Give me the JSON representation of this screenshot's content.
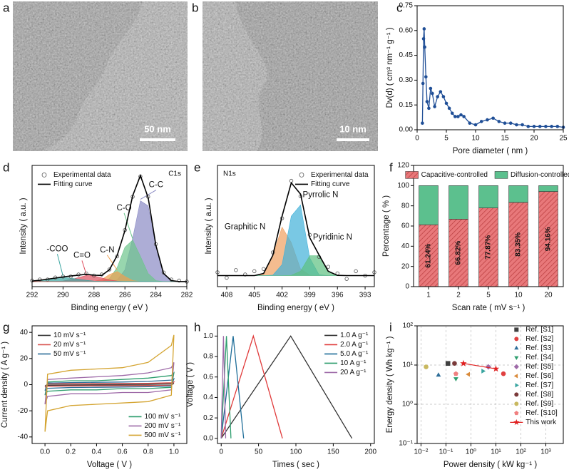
{
  "images": [
    {
      "panel": "a",
      "scale_bar": "50 nm"
    },
    {
      "panel": "b",
      "scale_bar": "10 nm"
    }
  ],
  "chart_data": [
    {
      "panel": "c",
      "type": "line",
      "markers": true,
      "color": "#1f4e96",
      "xlabel": "Pore diameter ( nm )",
      "ylabel": "Dv(d) ( cm³ nm⁻¹ g⁻¹ )",
      "xlim": [
        0,
        25
      ],
      "xticks": [
        0,
        5,
        10,
        15,
        20,
        25
      ],
      "ylim": [
        0,
        0.75
      ],
      "yticks": [
        {
          "value": 0,
          "label": "0.00"
        },
        {
          "value": 0.15,
          "label": "0.15"
        },
        {
          "value": 0.3,
          "label": "0.30"
        },
        {
          "value": 0.45,
          "label": "0.45"
        },
        {
          "value": 0.6,
          "label": "0.60"
        },
        {
          "value": 0.75,
          "label": "0.75"
        }
      ],
      "x": [
        0.9,
        1.0,
        1.1,
        1.2,
        1.3,
        1.5,
        1.7,
        2.0,
        2.3,
        2.6,
        3.0,
        3.5,
        4.0,
        4.5,
        5.0,
        5.5,
        6.0,
        6.5,
        7.0,
        7.5,
        8.0,
        9.0,
        10,
        11,
        12,
        13,
        14,
        15,
        16,
        17,
        18,
        19,
        20,
        21,
        22,
        23,
        24,
        25
      ],
      "values": [
        0.04,
        0.28,
        0.55,
        0.61,
        0.5,
        0.32,
        0.17,
        0.13,
        0.25,
        0.22,
        0.14,
        0.2,
        0.23,
        0.2,
        0.16,
        0.13,
        0.1,
        0.08,
        0.08,
        0.09,
        0.08,
        0.04,
        0.03,
        0.05,
        0.06,
        0.07,
        0.05,
        0.04,
        0.04,
        0.03,
        0.03,
        0.02,
        0.02,
        0.02,
        0.02,
        0.02,
        0.02,
        0.015
      ]
    },
    {
      "panel": "d",
      "type": "xps",
      "annotation": "C1s",
      "legend": "upper left",
      "xlabel": "Binding energy ( eV )",
      "ylabel": "Intensity ( a.u. )",
      "xlim": [
        292,
        282
      ],
      "xticks": [
        292,
        290,
        288,
        286,
        284,
        282
      ],
      "ylim": [
        -0.05,
        1.15
      ],
      "x": [
        292,
        291.5,
        291,
        290.5,
        290,
        289.5,
        289,
        288.5,
        288,
        287.5,
        287,
        286.5,
        286,
        285.5,
        285,
        284.5,
        284,
        283.5,
        283,
        282.5,
        282
      ],
      "series": [
        {
          "name": "Experimental data",
          "color": "#555555",
          "marker": "open-circle",
          "values": [
            0.01,
            0.02,
            0.02,
            0.04,
            0.05,
            0.05,
            0.07,
            0.08,
            0.06,
            0.07,
            0.12,
            0.25,
            0.51,
            0.84,
            1.04,
            0.84,
            0.37,
            0.09,
            0.02,
            0.01,
            0
          ]
        },
        {
          "name": "Fitting curve",
          "color": "#000000",
          "values": [
            0.005,
            0.013,
            0.024,
            0.035,
            0.046,
            0.055,
            0.064,
            0.073,
            0.063,
            0.061,
            0.117,
            0.26,
            0.505,
            0.85,
            1.05,
            0.83,
            0.36,
            0.08,
            0.01,
            0,
            0
          ]
        }
      ],
      "peaks": [
        {
          "label": "C-C",
          "color": "#8a8ac4",
          "label_color": "#111111",
          "values": [
            0,
            0,
            0,
            0,
            0,
            0,
            0,
            0,
            0,
            0,
            0.001,
            0.015,
            0.115,
            0.43,
            0.8,
            0.75,
            0.35,
            0.08,
            0.01,
            0,
            0
          ]
        },
        {
          "label": "C-O",
          "color": "#6cc58c",
          "label_color": "#111111",
          "values": [
            0,
            0,
            0,
            0,
            0,
            0,
            0,
            0,
            0,
            0.003,
            0.03,
            0.14,
            0.34,
            0.41,
            0.25,
            0.08,
            0.01,
            0,
            0,
            0,
            0
          ]
        },
        {
          "label": "C-N",
          "color": "#f0a050",
          "label_color": "#111111",
          "values": [
            0,
            0,
            0,
            0,
            0,
            0,
            0,
            0,
            0.002,
            0.02,
            0.07,
            0.1,
            0.05,
            0.01,
            0,
            0,
            0,
            0,
            0,
            0,
            0
          ]
        },
        {
          "label": "C=O",
          "color": "#e05060",
          "label_color": "#111111",
          "values": [
            0,
            0,
            0,
            0,
            0.006,
            0.02,
            0.04,
            0.06,
            0.056,
            0.036,
            0.016,
            0.005,
            0,
            0,
            0,
            0,
            0,
            0,
            0,
            0,
            0
          ]
        },
        {
          "label": "-COO",
          "color": "#3aa5a0",
          "label_color": "#111111",
          "values": [
            0.005,
            0.013,
            0.024,
            0.035,
            0.04,
            0.035,
            0.024,
            0.013,
            0.005,
            0.002,
            0,
            0,
            0,
            0,
            0,
            0,
            0,
            0,
            0,
            0,
            0
          ]
        }
      ]
    },
    {
      "panel": "e",
      "type": "xps",
      "annotation": "N1s",
      "legend": "upper right",
      "xlabel": "Binding energy ( eV )",
      "ylabel": "Intensity ( a.u. )",
      "xlim": [
        409,
        392
      ],
      "xticks": [
        408,
        405,
        402,
        399,
        396,
        393
      ],
      "ylim": [
        -0.1,
        1.0
      ],
      "x": [
        409,
        408,
        407,
        406,
        405,
        404,
        403,
        402,
        401,
        400,
        399,
        398,
        397,
        396,
        395,
        394,
        393,
        392
      ],
      "series": [
        {
          "name": "Experimental data",
          "color": "#555555",
          "marker": "open-circle",
          "values": [
            0.03,
            -0.02,
            0.05,
            0.01,
            0.04,
            0.06,
            0.21,
            0.52,
            0.86,
            0.72,
            0.37,
            0.17,
            0.08,
            0.02,
            -0.03,
            0.04,
            0.0,
            0.03
          ]
        },
        {
          "name": "Fitting curve",
          "color": "#000000",
          "values": [
            0,
            0,
            0,
            0,
            0,
            0.02,
            0.184,
            0.54,
            0.842,
            0.74,
            0.344,
            0.188,
            0.04,
            0.002,
            0,
            0,
            0,
            0
          ]
        }
      ],
      "peaks": [
        {
          "label": "Graphitic N",
          "color": "#f0a060",
          "label_color": "#e0603a",
          "values": [
            0,
            0,
            0,
            0,
            0,
            0.02,
            0.18,
            0.44,
            0.3,
            0.06,
            0.004,
            0,
            0,
            0,
            0,
            0,
            0,
            0
          ]
        },
        {
          "label": "Pyrrolic N",
          "color": "#40b0d8",
          "label_color": "#2e9e6e",
          "values": [
            0,
            0,
            0,
            0,
            0,
            0,
            0.004,
            0.1,
            0.54,
            0.64,
            0.16,
            0.008,
            0,
            0,
            0,
            0,
            0,
            0
          ]
        },
        {
          "label": "Pyridinic N",
          "color": "#5cc080",
          "label_color": "#2e9e6e",
          "values": [
            0,
            0,
            0,
            0,
            0,
            0,
            0,
            0,
            0.002,
            0.04,
            0.18,
            0.18,
            0.04,
            0.002,
            0,
            0,
            0,
            0
          ]
        }
      ]
    },
    {
      "panel": "f",
      "type": "stacked_bar",
      "legend": "upper center",
      "xlabel": "Scan rate ( mV s⁻¹ )",
      "ylabel": "Percentage ( % )",
      "categories": [
        "1",
        "2",
        "5",
        "10",
        "20"
      ],
      "ylim": [
        0,
        120
      ],
      "yticks": [
        0,
        20,
        40,
        60,
        80,
        100,
        120
      ],
      "series": [
        {
          "name": "Capacitive-controlled",
          "color": "#e8787a",
          "hatch": true,
          "values": [
            61.24,
            66.82,
            77.87,
            83.35,
            94.16
          ],
          "value_labels": [
            "61.24%",
            "66.82%",
            "77.87%",
            "83.35%",
            "94.16%"
          ]
        },
        {
          "name": "Diffusion-controlled",
          "color": "#5cc08e",
          "values": [
            38.76,
            33.18,
            22.13,
            16.65,
            5.84
          ]
        }
      ]
    },
    {
      "panel": "g",
      "type": "line",
      "legend": [
        "upper left",
        "lower right"
      ],
      "xlabel": "Voltage ( V )",
      "ylabel": "Current density ( A g⁻¹ )",
      "xlim": [
        -0.1,
        1.1
      ],
      "xticks": [
        {
          "value": 0,
          "label": "0.0"
        },
        {
          "value": 0.2,
          "label": "0.2"
        },
        {
          "value": 0.4,
          "label": "0.4"
        },
        {
          "value": 0.6,
          "label": "0.6"
        },
        {
          "value": 0.8,
          "label": "0.8"
        },
        {
          "value": 1,
          "label": "1.0"
        }
      ],
      "ylim": [
        -45,
        45
      ],
      "yticks": [
        -40,
        -20,
        0,
        20,
        40
      ],
      "x": [
        0,
        0.02,
        0.2,
        0.4,
        0.6,
        0.8,
        0.98,
        1,
        0.98,
        0.8,
        0.6,
        0.4,
        0.2,
        0.02,
        0
      ],
      "series": [
        {
          "name": "10 mV s⁻¹",
          "color": "#3a3a3a",
          "values": [
            -1,
            0.3,
            0.35,
            0.4,
            0.45,
            0.5,
            0.8,
            1,
            -0.3,
            -0.35,
            -0.4,
            -0.45,
            -0.5,
            -0.6,
            -1
          ]
        },
        {
          "name": "20 mV s⁻¹",
          "color": "#d9534f",
          "values": [
            -2,
            0.6,
            0.7,
            0.8,
            0.9,
            1,
            1.5,
            2,
            -0.5,
            -0.7,
            -0.8,
            -0.9,
            -1,
            -1.2,
            -2
          ]
        },
        {
          "name": "50 mV s⁻¹",
          "color": "#2e6e99",
          "values": [
            -4.5,
            1.2,
            1.6,
            1.8,
            2,
            2.5,
            3.5,
            4.5,
            -1,
            -1.5,
            -1.8,
            -2,
            -2.2,
            -2.8,
            -4.5
          ]
        },
        {
          "name": "100 mV s⁻¹",
          "color": "#2e9e6e",
          "values": [
            -8,
            2,
            3,
            3,
            4,
            5,
            7,
            9,
            -2,
            -3,
            -3,
            -4,
            -4,
            -5,
            -8
          ]
        },
        {
          "name": "200 mV s⁻¹",
          "color": "#9e6aa8",
          "values": [
            -15,
            4,
            5,
            6,
            7,
            9,
            13,
            17,
            -4,
            -6,
            -6,
            -7,
            -7,
            -9,
            -15
          ]
        },
        {
          "name": "500 mV s⁻¹",
          "color": "#d4a431",
          "values": [
            -36,
            8,
            11,
            12,
            13,
            17,
            30,
            38,
            -8,
            -13,
            -14,
            -15,
            -16,
            -20,
            -36
          ]
        }
      ]
    },
    {
      "panel": "h",
      "type": "line",
      "legend": "upper right",
      "xlabel": "Times ( sec )",
      "ylabel": "Voltage ( V )",
      "xlim": [
        -5,
        205
      ],
      "xticks": [
        0,
        50,
        100,
        150,
        200
      ],
      "ylim": [
        -0.05,
        1.1
      ],
      "yticks": [
        {
          "value": 0,
          "label": "0.0"
        },
        {
          "value": 0.2,
          "label": "0.2"
        },
        {
          "value": 0.4,
          "label": "0.4"
        },
        {
          "value": 0.6,
          "label": "0.6"
        },
        {
          "value": 0.8,
          "label": "0.8"
        },
        {
          "value": 1,
          "label": "1.0"
        }
      ],
      "series": [
        {
          "name": "1.0 A g⁻¹",
          "color": "#333333",
          "x": [
            0,
            93,
            175
          ],
          "values": [
            0,
            1,
            0
          ]
        },
        {
          "name": "2.0 A g⁻¹",
          "color": "#e03a3a",
          "x": [
            0,
            43,
            82
          ],
          "values": [
            0,
            1,
            0
          ]
        },
        {
          "name": "5.0 A g⁻¹",
          "color": "#1f6e99",
          "x": [
            0,
            16,
            30
          ],
          "values": [
            0,
            1,
            0
          ]
        },
        {
          "name": "10 A g⁻¹",
          "color": "#2e9e6e",
          "x": [
            0,
            7,
            13
          ],
          "values": [
            0,
            1,
            0
          ]
        },
        {
          "name": "20 A g⁻¹",
          "color": "#9e6aa8",
          "x": [
            0,
            3,
            6
          ],
          "values": [
            0,
            1,
            0
          ]
        }
      ]
    },
    {
      "panel": "i",
      "type": "scatter",
      "xlog": true,
      "ylog": true,
      "grid": true,
      "legend": "right",
      "xlabel": "Power density ( kW kg⁻¹ )",
      "ylabel": "Energy density ( Wh kg⁻¹ )",
      "xlim": [
        0.007,
        5000
      ],
      "xticks": [
        {
          "value": 0.01,
          "label": "10⁻²"
        },
        {
          "value": 0.1,
          "label": "10⁻¹"
        },
        {
          "value": 1,
          "label": "10⁰"
        },
        {
          "value": 10,
          "label": "10¹"
        },
        {
          "value": 100,
          "label": "10²"
        },
        {
          "value": 1000,
          "label": "10³"
        }
      ],
      "ylim": [
        0.1,
        100
      ],
      "yticks": [
        {
          "value": 0.1,
          "label": "10⁻¹"
        },
        {
          "value": 1,
          "label": "10⁰"
        },
        {
          "value": 10,
          "label": "10¹"
        },
        {
          "value": 100,
          "label": "10²"
        }
      ],
      "series": [
        {
          "name": "Ref. [S1]",
          "color": "#404040",
          "marker": "square",
          "x": [
            0.12
          ],
          "values": [
            11
          ]
        },
        {
          "name": "Ref. [S2]",
          "color": "#e04040",
          "marker": "circle",
          "x": [
            20
          ],
          "values": [
            6
          ]
        },
        {
          "name": "Ref. [S3]",
          "color": "#2e6e99",
          "marker": "triangle-up",
          "x": [
            0.05
          ],
          "values": [
            5.5
          ]
        },
        {
          "name": "Ref. [S4]",
          "color": "#2e9e6e",
          "marker": "triangle-down",
          "x": [
            0.25
          ],
          "values": [
            4.5
          ]
        },
        {
          "name": "Ref. [S5]",
          "color": "#9e6aa8",
          "marker": "diamond",
          "x": [
            5
          ],
          "values": [
            9
          ]
        },
        {
          "name": "Ref. [S6]",
          "color": "#d98a3a",
          "marker": "triangle-left",
          "x": [
            0.8
          ],
          "values": [
            5.8
          ]
        },
        {
          "name": "Ref. [S7]",
          "color": "#3aa5a0",
          "marker": "triangle-right",
          "x": [
            3
          ],
          "values": [
            7
          ]
        },
        {
          "name": "Ref. [S8]",
          "color": "#7a3a3a",
          "marker": "circle",
          "x": [
            0.22
          ],
          "values": [
            11
          ]
        },
        {
          "name": "Ref. [S9]",
          "color": "#c8b860",
          "marker": "circle",
          "x": [
            0.016
          ],
          "values": [
            9
          ]
        },
        {
          "name": "Ref. [S10]",
          "color": "#f08080",
          "marker": "pentagon",
          "x": [
            0.25
          ],
          "values": [
            6
          ]
        },
        {
          "name": "This work",
          "color": "#e02020",
          "marker": "star",
          "line": true,
          "x": [
            0.5,
            10
          ],
          "values": [
            11,
            8
          ]
        }
      ]
    }
  ]
}
